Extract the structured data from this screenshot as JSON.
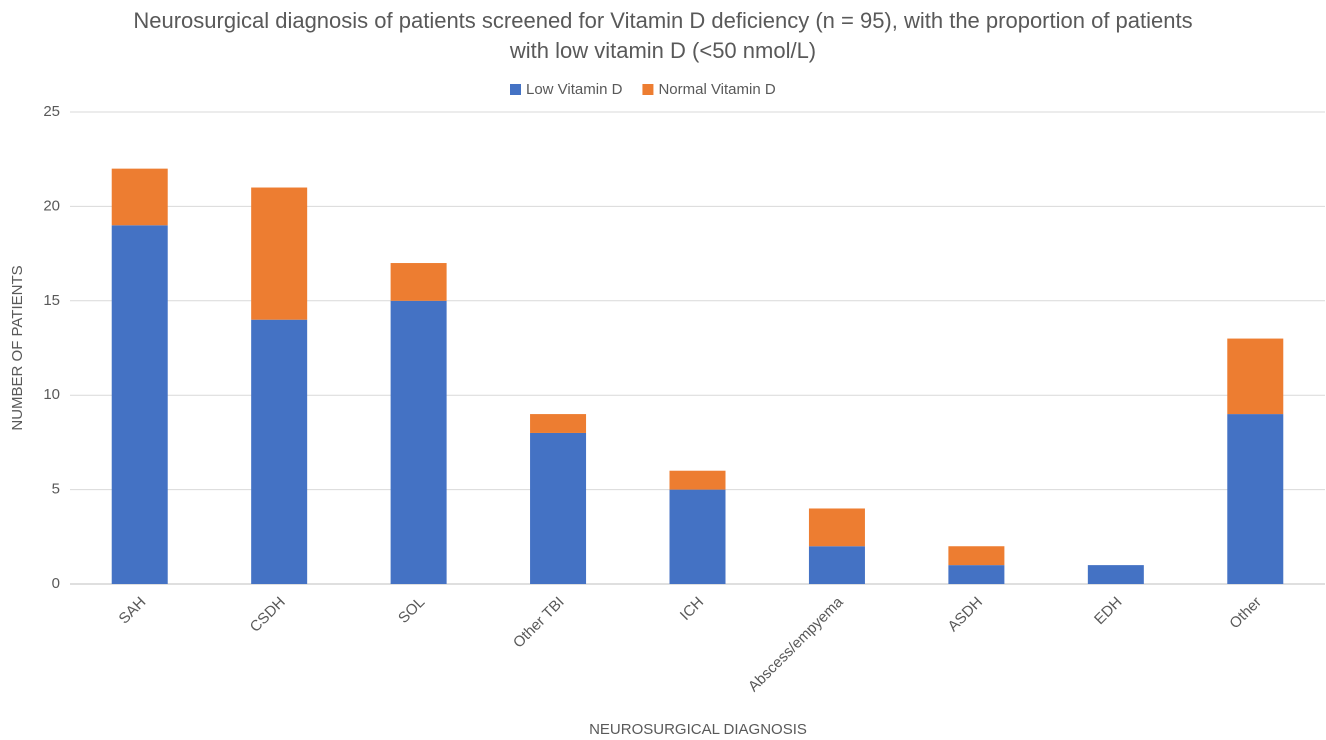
{
  "chart_data": {
    "type": "stacked_bar",
    "title": "Neurosurgical diagnosis of patients screened for Vitamin D deficiency (n = 95), with the proportion of patients with low vitamin D (<50  nmol/L)",
    "x_label": "NEUROSURGICAL DIAGNOSIS",
    "y_label": "NUMBER OF PATIENTS",
    "categories": [
      "SAH",
      "CSDH",
      "SOL",
      "Other TBI",
      "ICH",
      "Abscess/empyema",
      "ASDH",
      "EDH",
      "Other"
    ],
    "series": [
      {
        "name": "Low Vitamin D",
        "color": "#4472c4",
        "values": [
          19,
          14,
          15,
          8,
          5,
          2,
          1,
          1,
          9
        ]
      },
      {
        "name": "Normal Vitamin D",
        "color": "#ed7d31",
        "values": [
          3,
          7,
          2,
          1,
          1,
          2,
          1,
          0,
          4
        ]
      }
    ],
    "ylim": [
      0,
      25
    ],
    "yticks": [
      0,
      5,
      10,
      15,
      20,
      25
    ],
    "grid": true,
    "legend": "top"
  }
}
